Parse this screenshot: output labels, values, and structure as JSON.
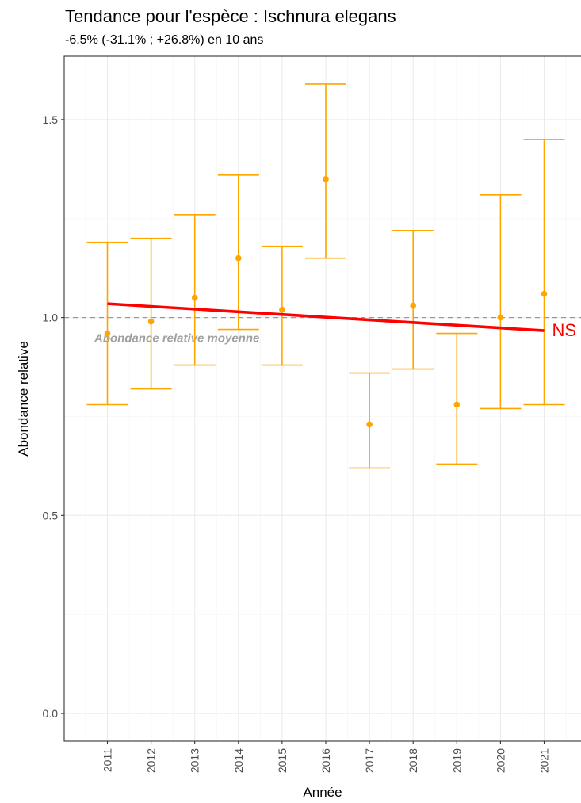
{
  "title": "Tendance pour l'espèce : Ischnura elegans",
  "subtitle": "-6.5% (-31.1% ; +26.8%) en 10 ans",
  "chart_data": {
    "type": "scatter",
    "title": "Tendance pour l'espèce : Ischnura elegans",
    "subtitle": "-6.5% (-31.1% ; +26.8%) en 10 ans",
    "xlabel": "Année",
    "ylabel": "Abondance relative",
    "x": [
      2011,
      2012,
      2013,
      2014,
      2015,
      2016,
      2017,
      2018,
      2019,
      2020,
      2021
    ],
    "x_tick_labels": [
      "2011",
      "2012",
      "2013",
      "2014",
      "2015",
      "2016",
      "2017",
      "2018",
      "2019",
      "2020",
      "2021"
    ],
    "ylim": [
      -0.07,
      1.66
    ],
    "y_ticks": [
      0.0,
      0.5,
      1.0,
      1.5
    ],
    "y_tick_labels": [
      "0.0",
      "0.5",
      "1.0",
      "1.5"
    ],
    "points": [
      {
        "year": 2011,
        "value": 0.96,
        "lower": 0.78,
        "upper": 1.19
      },
      {
        "year": 2012,
        "value": 0.99,
        "lower": 0.82,
        "upper": 1.2
      },
      {
        "year": 2013,
        "value": 1.05,
        "lower": 0.88,
        "upper": 1.26
      },
      {
        "year": 2014,
        "value": 1.15,
        "lower": 0.97,
        "upper": 1.36
      },
      {
        "year": 2015,
        "value": 1.02,
        "lower": 0.88,
        "upper": 1.18
      },
      {
        "year": 2016,
        "value": 1.35,
        "lower": 1.15,
        "upper": 1.59
      },
      {
        "year": 2017,
        "value": 0.73,
        "lower": 0.62,
        "upper": 0.86
      },
      {
        "year": 2018,
        "value": 1.03,
        "lower": 0.87,
        "upper": 1.22
      },
      {
        "year": 2019,
        "value": 0.78,
        "lower": 0.63,
        "upper": 0.96
      },
      {
        "year": 2020,
        "value": 1.0,
        "lower": 0.77,
        "upper": 1.31
      },
      {
        "year": 2021,
        "value": 1.06,
        "lower": 0.78,
        "upper": 1.45
      }
    ],
    "trend": {
      "start": [
        2011,
        1.035
      ],
      "end": [
        2021,
        0.967
      ],
      "label": "NS"
    },
    "reference": {
      "value": 1.0,
      "label": "Abondance relative moyenne"
    },
    "colors": {
      "points": "#FFA500",
      "trend": "#FF0000",
      "reference": "#999999",
      "reference_label": "#A0A0A0"
    },
    "grid": true
  }
}
